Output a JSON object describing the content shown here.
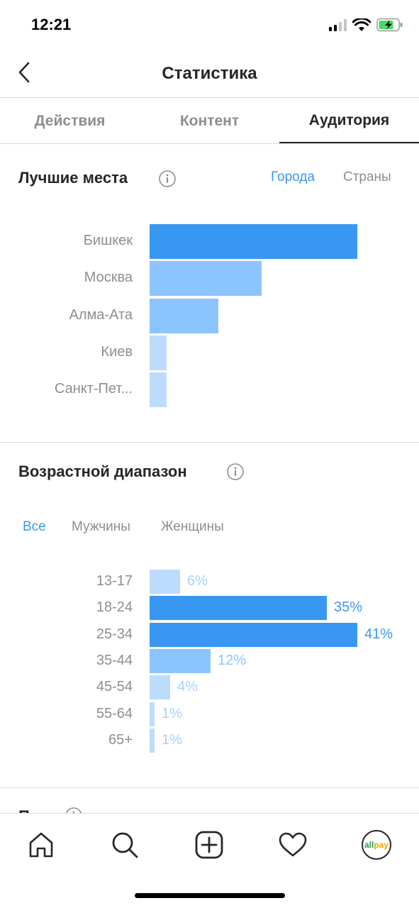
{
  "status": {
    "time": "12:21"
  },
  "header": {
    "title": "Статистика"
  },
  "tabs": [
    {
      "label": "Действия",
      "active": false
    },
    {
      "label": "Контент",
      "active": false
    },
    {
      "label": "Аудитория",
      "active": true
    }
  ],
  "top_places": {
    "title": "Лучшие места",
    "segments": [
      {
        "label": "Города",
        "active": true
      },
      {
        "label": "Страны",
        "active": false
      }
    ],
    "rows": [
      {
        "label": "Бишкек",
        "value": 100
      },
      {
        "label": "Москва",
        "value": 54
      },
      {
        "label": "Алма-Ата",
        "value": 33
      },
      {
        "label": "Киев",
        "value": 8
      },
      {
        "label": "Санкт-Пет...",
        "value": 8
      }
    ]
  },
  "age_range": {
    "title": "Возрастной диапазон",
    "segments": [
      {
        "label": "Все",
        "active": true
      },
      {
        "label": "Мужчины",
        "active": false
      },
      {
        "label": "Женщины",
        "active": false
      }
    ],
    "rows": [
      {
        "label": "13-17",
        "value": 6,
        "pct": "6%"
      },
      {
        "label": "18-24",
        "value": 35,
        "pct": "35%"
      },
      {
        "label": "25-34",
        "value": 41,
        "pct": "41%"
      },
      {
        "label": "35-44",
        "value": 12,
        "pct": "12%"
      },
      {
        "label": "45-54",
        "value": 4,
        "pct": "4%"
      },
      {
        "label": "55-64",
        "value": 1,
        "pct": "1%"
      },
      {
        "label": "65+",
        "value": 1,
        "pct": "1%"
      }
    ]
  },
  "gender": {
    "title": "Пол"
  },
  "bottom_nav": {
    "items": [
      "home-icon",
      "search-icon",
      "add-post-icon",
      "activity-heart-icon",
      "profile-avatar"
    ],
    "avatar_text": "allpay"
  },
  "colors": {
    "accent": "#3897f0",
    "bar_strong": "#3897f0",
    "bar_medium": "#8cc4ff",
    "bar_light": "#bddcfd",
    "label_light": "#a9d1fc"
  }
}
